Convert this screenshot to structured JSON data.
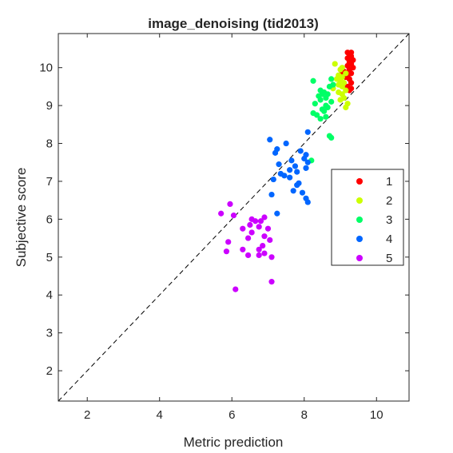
{
  "chart_data": {
    "type": "scatter",
    "title": "image_denoising (tid2013)",
    "xlabel": "Metric prediction",
    "ylabel": "Subjective score",
    "xlim": [
      1.2,
      10.9
    ],
    "ylim": [
      1.2,
      10.9
    ],
    "xticks": [
      2,
      4,
      6,
      8,
      10
    ],
    "yticks": [
      2,
      3,
      4,
      5,
      6,
      7,
      8,
      9,
      10
    ],
    "grid": false,
    "legend_position": "right",
    "reference_line": "y = x (dashed)",
    "series": [
      {
        "name": "1",
        "color": "#ff0000",
        "points": [
          [
            9.2,
            10.4
          ],
          [
            9.3,
            10.4
          ],
          [
            9.25,
            10.35
          ],
          [
            9.3,
            10.3
          ],
          [
            9.2,
            10.25
          ],
          [
            9.35,
            10.2
          ],
          [
            9.25,
            10.15
          ],
          [
            9.3,
            10.1
          ],
          [
            9.2,
            10.05
          ],
          [
            9.35,
            10.0
          ],
          [
            9.25,
            9.95
          ],
          [
            9.1,
            9.9
          ],
          [
            9.3,
            9.85
          ],
          [
            9.2,
            9.8
          ],
          [
            9.25,
            9.7
          ],
          [
            9.3,
            9.6
          ],
          [
            9.2,
            9.5
          ],
          [
            9.3,
            9.45
          ],
          [
            9.25,
            9.4
          ],
          [
            9.05,
            9.85
          ],
          [
            9.15,
            9.75
          ]
        ]
      },
      {
        "name": "2",
        "color": "#ccff00",
        "points": [
          [
            8.85,
            10.1
          ],
          [
            9.05,
            10.0
          ],
          [
            9.0,
            9.95
          ],
          [
            9.15,
            9.85
          ],
          [
            8.95,
            9.8
          ],
          [
            9.05,
            9.75
          ],
          [
            8.9,
            9.7
          ],
          [
            9.0,
            9.65
          ],
          [
            9.1,
            9.6
          ],
          [
            8.95,
            9.55
          ],
          [
            9.05,
            9.5
          ],
          [
            8.8,
            9.45
          ],
          [
            9.15,
            9.4
          ],
          [
            9.05,
            9.3
          ],
          [
            9.1,
            9.2
          ],
          [
            9.0,
            9.15
          ],
          [
            9.2,
            9.05
          ],
          [
            9.15,
            8.95
          ],
          [
            8.95,
            9.35
          ]
        ]
      },
      {
        "name": "3",
        "color": "#00ff66",
        "points": [
          [
            8.25,
            9.65
          ],
          [
            8.75,
            9.7
          ],
          [
            8.8,
            9.55
          ],
          [
            8.7,
            9.5
          ],
          [
            8.45,
            9.4
          ],
          [
            8.5,
            9.3
          ],
          [
            8.55,
            9.35
          ],
          [
            8.65,
            9.3
          ],
          [
            8.4,
            9.25
          ],
          [
            8.6,
            9.2
          ],
          [
            8.75,
            9.1
          ],
          [
            8.45,
            9.15
          ],
          [
            8.3,
            9.05
          ],
          [
            8.6,
            9.0
          ],
          [
            8.65,
            8.95
          ],
          [
            8.5,
            8.9
          ],
          [
            8.55,
            8.85
          ],
          [
            8.35,
            8.75
          ],
          [
            8.25,
            8.8
          ],
          [
            8.45,
            8.65
          ],
          [
            8.6,
            8.7
          ],
          [
            8.7,
            8.2
          ],
          [
            8.75,
            8.15
          ],
          [
            8.2,
            7.55
          ]
        ]
      },
      {
        "name": "4",
        "color": "#0066ff",
        "points": [
          [
            7.05,
            8.1
          ],
          [
            7.5,
            8.0
          ],
          [
            8.1,
            8.3
          ],
          [
            7.25,
            7.85
          ],
          [
            7.2,
            7.75
          ],
          [
            7.9,
            7.8
          ],
          [
            8.05,
            7.7
          ],
          [
            7.3,
            7.45
          ],
          [
            7.65,
            7.55
          ],
          [
            8.0,
            7.6
          ],
          [
            8.1,
            7.5
          ],
          [
            7.75,
            7.4
          ],
          [
            7.6,
            7.3
          ],
          [
            7.8,
            7.25
          ],
          [
            7.35,
            7.2
          ],
          [
            8.05,
            7.35
          ],
          [
            7.45,
            7.15
          ],
          [
            7.6,
            7.1
          ],
          [
            7.15,
            7.05
          ],
          [
            7.85,
            6.95
          ],
          [
            7.8,
            6.9
          ],
          [
            7.7,
            6.75
          ],
          [
            7.95,
            6.7
          ],
          [
            8.05,
            6.55
          ],
          [
            7.1,
            6.65
          ],
          [
            8.1,
            6.45
          ],
          [
            7.25,
            6.15
          ]
        ]
      },
      {
        "name": "5",
        "color": "#cc00ff",
        "points": [
          [
            5.95,
            6.4
          ],
          [
            5.7,
            6.15
          ],
          [
            6.05,
            6.1
          ],
          [
            6.55,
            6.0
          ],
          [
            6.8,
            5.95
          ],
          [
            6.9,
            6.05
          ],
          [
            6.65,
            5.95
          ],
          [
            6.5,
            5.85
          ],
          [
            6.75,
            5.8
          ],
          [
            7.0,
            5.75
          ],
          [
            6.3,
            5.75
          ],
          [
            6.55,
            5.65
          ],
          [
            6.9,
            5.55
          ],
          [
            6.45,
            5.5
          ],
          [
            7.05,
            5.45
          ],
          [
            5.9,
            5.4
          ],
          [
            6.85,
            5.3
          ],
          [
            6.3,
            5.2
          ],
          [
            6.75,
            5.2
          ],
          [
            5.85,
            5.15
          ],
          [
            6.9,
            5.1
          ],
          [
            6.75,
            5.05
          ],
          [
            6.45,
            5.05
          ],
          [
            7.1,
            5.0
          ],
          [
            7.1,
            4.35
          ],
          [
            6.1,
            4.15
          ]
        ]
      }
    ]
  }
}
